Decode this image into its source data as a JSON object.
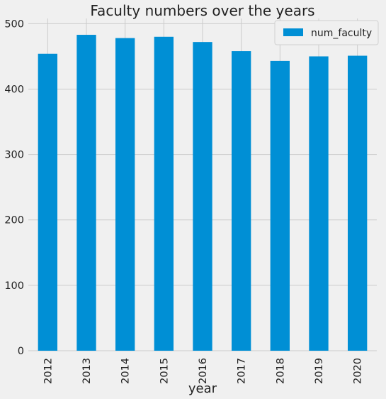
{
  "chart_data": {
    "type": "bar",
    "title": "Faculty numbers over the years",
    "xlabel": "year",
    "ylabel": "",
    "categories": [
      "2012",
      "2013",
      "2014",
      "2015",
      "2016",
      "2017",
      "2018",
      "2019",
      "2020"
    ],
    "series": [
      {
        "name": "num_faculty",
        "values": [
          454,
          483,
          478,
          480,
          472,
          458,
          443,
          450,
          451
        ]
      }
    ],
    "ylim": [
      0,
      508
    ],
    "yticks": [
      0,
      100,
      200,
      300,
      400,
      500
    ],
    "grid": true,
    "legend": "top-right",
    "colors": {
      "bar": "#008fd5",
      "background": "#f0f0f0",
      "grid": "#cbcbcb"
    }
  }
}
